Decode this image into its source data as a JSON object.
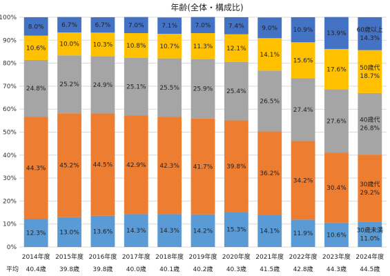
{
  "chart_data": {
    "type": "bar",
    "stacked": true,
    "percent": true,
    "title": "年齢(全体・構成比)",
    "categories": [
      "2014年度",
      "2015年度",
      "2016年度",
      "2017年度",
      "2018年度",
      "2019年度",
      "2020年度",
      "2021年度",
      "2022年度",
      "2023年度",
      "2024年度"
    ],
    "average_label": "平均",
    "averages": [
      "40.4歳",
      "39.8歳",
      "39.8歳",
      "40.0歳",
      "40.1歳",
      "40.2歳",
      "40.3歳",
      "41.5歳",
      "42.8歳",
      "44.3歳",
      "44.5歳"
    ],
    "ylim": [
      0,
      100
    ],
    "yticks": [
      "0%",
      "10%",
      "20%",
      "30%",
      "40%",
      "50%",
      "60%",
      "70%",
      "80%",
      "90%",
      "100%"
    ],
    "grid": true,
    "series": [
      {
        "name": "30歳未満",
        "color": "#5b9bd5",
        "values": [
          12.3,
          13.0,
          13.6,
          14.3,
          14.3,
          14.2,
          15.3,
          14.1,
          11.9,
          10.6,
          11.0
        ]
      },
      {
        "name": "30歳代",
        "color": "#ed7d31",
        "values": [
          44.3,
          45.2,
          44.5,
          42.9,
          42.3,
          41.7,
          39.8,
          36.2,
          34.2,
          30.4,
          29.2
        ]
      },
      {
        "name": "40歳代",
        "color": "#a5a5a5",
        "values": [
          24.8,
          25.2,
          24.9,
          25.1,
          25.5,
          25.9,
          25.4,
          26.5,
          27.4,
          27.6,
          26.8
        ]
      },
      {
        "name": "50歳代",
        "color": "#ffc000",
        "values": [
          10.6,
          10.0,
          10.3,
          10.8,
          10.7,
          11.3,
          12.1,
          14.1,
          15.6,
          17.6,
          18.7
        ]
      },
      {
        "name": "60歳以上",
        "color": "#4472c4",
        "values": [
          8.0,
          6.7,
          6.7,
          7.0,
          7.1,
          7.0,
          7.4,
          9.0,
          10.9,
          13.9,
          14.3
        ]
      }
    ],
    "value_labels": [
      [
        "12.3%",
        "13.0%",
        "13.6%",
        "14.3%",
        "14.3%",
        "14.2%",
        "15.3%",
        "14.1%",
        "11.9%",
        "10.6%",
        "11.0%"
      ],
      [
        "44.3%",
        "45.2%",
        "44.5%",
        "42.9%",
        "42.3%",
        "41.7%",
        "39.8%",
        "36.2%",
        "34.2%",
        "30.4%",
        "29.2%"
      ],
      [
        "24.8%",
        "25.2%",
        "24.9%",
        "25.1%",
        "25.5%",
        "25.9%",
        "25.4%",
        "26.5%",
        "27.4%",
        "27.6%",
        "26.8%"
      ],
      [
        "10.6%",
        "10.0%",
        "10.3%",
        "10.8%",
        "10.7%",
        "11.3%",
        "12.1%",
        "14.1%",
        "15.6%",
        "17.6%",
        "18.7%"
      ],
      [
        "8.0%",
        "6.7%",
        "6.7%",
        "7.0%",
        "7.1%",
        "7.0%",
        "7.4%",
        "9.0%",
        "10.9%",
        "13.9%",
        "14.3%"
      ]
    ],
    "legend": "inline on last bar"
  }
}
